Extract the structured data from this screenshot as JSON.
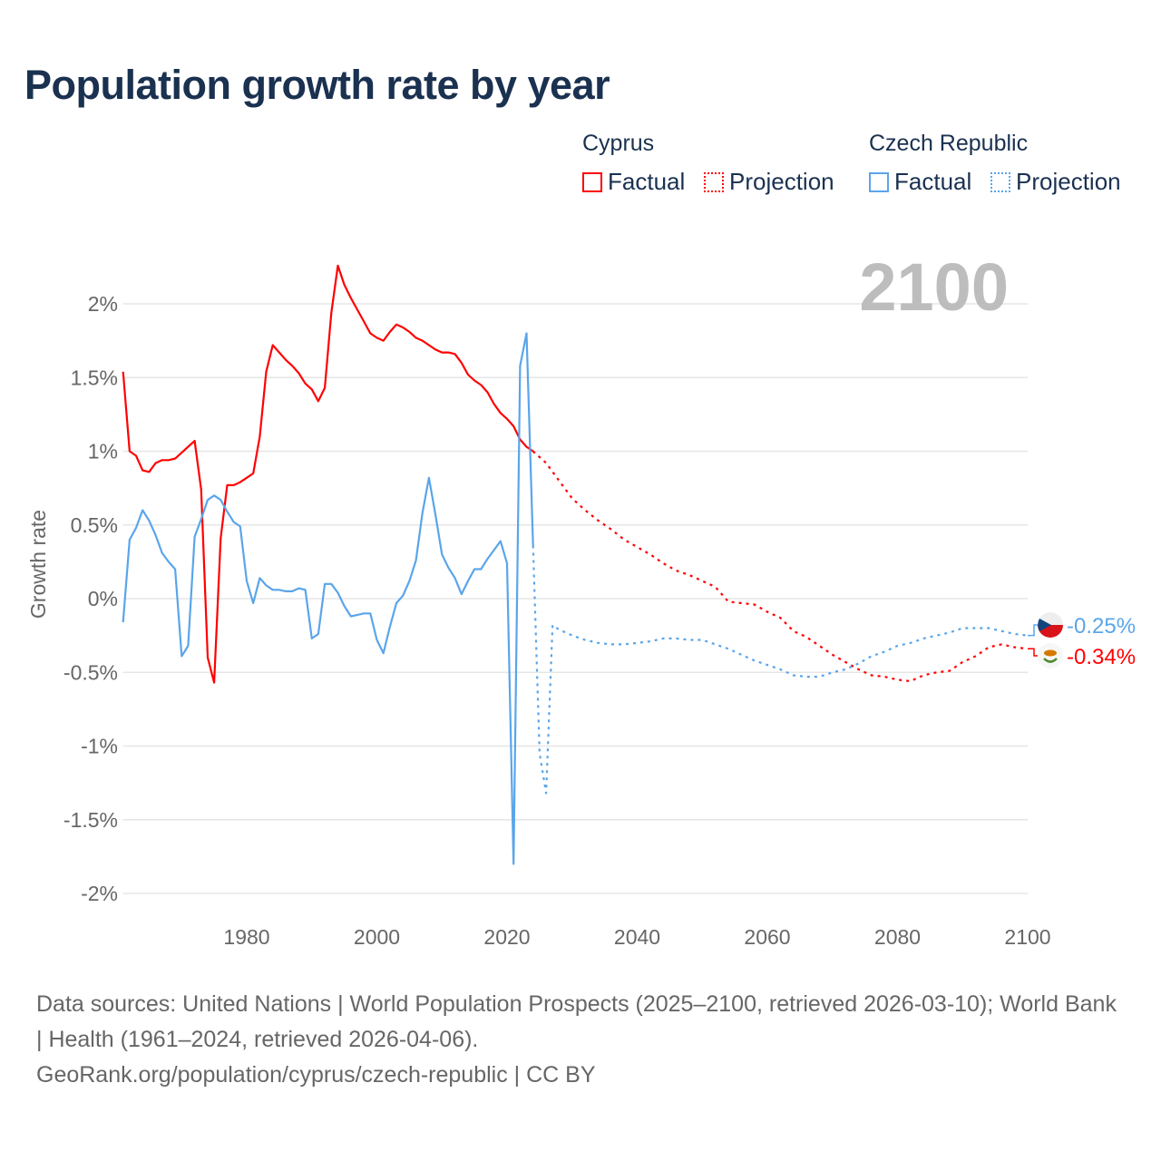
{
  "title": "Population growth rate by year",
  "legend": {
    "groups": [
      {
        "country": "Cyprus",
        "color": "#ff0000",
        "factual_label": "Factual",
        "projection_label": "Projection"
      },
      {
        "country": "Czech Republic",
        "color": "#5aa5ea",
        "factual_label": "Factual",
        "projection_label": "Projection"
      }
    ]
  },
  "year_display": "2100",
  "footer": {
    "line1": "Data sources: United Nations | World Population Prospects (2025–2100, retrieved 2026-03-10); World Bank | Health (1961–2024, retrieved 2026-04-06).",
    "line2": "GeoRank.org/population/cyprus/czech-republic | CC BY"
  },
  "chart_data": {
    "type": "line",
    "title": "Population growth rate by year",
    "xlabel": "",
    "ylabel": "Growth rate",
    "xlim": [
      1961,
      2100
    ],
    "ylim": [
      -2,
      2.3
    ],
    "x_ticks": [
      1980,
      2000,
      2020,
      2040,
      2060,
      2080,
      2100
    ],
    "y_ticks": [
      {
        "value": 2,
        "label": "2%"
      },
      {
        "value": 1.5,
        "label": "1.5%"
      },
      {
        "value": 1,
        "label": "1%"
      },
      {
        "value": 0.5,
        "label": "0.5%"
      },
      {
        "value": 0,
        "label": "0%"
      },
      {
        "value": -0.5,
        "label": "-0.5%"
      },
      {
        "value": -1,
        "label": "-1%"
      },
      {
        "value": -1.5,
        "label": "-1.5%"
      },
      {
        "value": -2,
        "label": "-2%"
      }
    ],
    "grid": true,
    "legend_position": "top-right",
    "series": [
      {
        "name": "Cyprus",
        "type": "Factual",
        "color": "#ff0000",
        "dashed": false,
        "x": [
          1961,
          1962,
          1963,
          1964,
          1965,
          1966,
          1967,
          1968,
          1969,
          1970,
          1971,
          1972,
          1973,
          1974,
          1975,
          1976,
          1977,
          1978,
          1979,
          1980,
          1981,
          1982,
          1983,
          1984,
          1985,
          1986,
          1987,
          1988,
          1989,
          1990,
          1991,
          1992,
          1993,
          1994,
          1995,
          1996,
          1997,
          1998,
          1999,
          2000,
          2001,
          2002,
          2003,
          2004,
          2005,
          2006,
          2007,
          2008,
          2009,
          2010,
          2011,
          2012,
          2013,
          2014,
          2015,
          2016,
          2017,
          2018,
          2019,
          2020,
          2021,
          2022,
          2023,
          2024
        ],
        "y": [
          1.54,
          1.0,
          0.97,
          0.87,
          0.86,
          0.92,
          0.94,
          0.94,
          0.95,
          0.99,
          1.03,
          1.07,
          0.74,
          -0.4,
          -0.57,
          0.41,
          0.77,
          0.77,
          0.79,
          0.82,
          0.85,
          1.1,
          1.54,
          1.72,
          1.67,
          1.62,
          1.58,
          1.53,
          1.46,
          1.42,
          1.34,
          1.43,
          1.94,
          2.26,
          2.13,
          2.04,
          1.96,
          1.88,
          1.8,
          1.77,
          1.75,
          1.81,
          1.86,
          1.84,
          1.81,
          1.77,
          1.75,
          1.72,
          1.69,
          1.67,
          1.67,
          1.66,
          1.6,
          1.52,
          1.48,
          1.45,
          1.4,
          1.32,
          1.26,
          1.22,
          1.17,
          1.08,
          1.03,
          1.0
        ]
      },
      {
        "name": "Cyprus",
        "type": "Projection",
        "color": "#ff0000",
        "dashed": true,
        "x": [
          2024,
          2026,
          2028,
          2030,
          2032,
          2034,
          2036,
          2038,
          2040,
          2042,
          2044,
          2046,
          2048,
          2050,
          2052,
          2054,
          2056,
          2058,
          2060,
          2062,
          2064,
          2066,
          2068,
          2070,
          2072,
          2074,
          2076,
          2078,
          2080,
          2082,
          2084,
          2086,
          2088,
          2090,
          2092,
          2094,
          2096,
          2098,
          2100
        ],
        "y": [
          1.0,
          0.92,
          0.8,
          0.68,
          0.6,
          0.53,
          0.47,
          0.4,
          0.35,
          0.3,
          0.24,
          0.19,
          0.16,
          0.12,
          0.08,
          -0.02,
          -0.03,
          -0.04,
          -0.09,
          -0.13,
          -0.22,
          -0.26,
          -0.32,
          -0.38,
          -0.43,
          -0.48,
          -0.52,
          -0.53,
          -0.55,
          -0.56,
          -0.52,
          -0.5,
          -0.49,
          -0.43,
          -0.39,
          -0.33,
          -0.31,
          -0.33,
          -0.34
        ]
      },
      {
        "name": "Czech Republic",
        "type": "Factual",
        "color": "#5aa5ea",
        "dashed": false,
        "x": [
          1961,
          1962,
          1963,
          1964,
          1965,
          1966,
          1967,
          1968,
          1969,
          1970,
          1971,
          1972,
          1973,
          1974,
          1975,
          1976,
          1977,
          1978,
          1979,
          1980,
          1981,
          1982,
          1983,
          1984,
          1985,
          1986,
          1987,
          1988,
          1989,
          1990,
          1991,
          1992,
          1993,
          1994,
          1995,
          1996,
          1997,
          1998,
          1999,
          2000,
          2001,
          2002,
          2003,
          2004,
          2005,
          2006,
          2007,
          2008,
          2009,
          2010,
          2011,
          2012,
          2013,
          2014,
          2015,
          2016,
          2017,
          2018,
          2019,
          2020,
          2021,
          2022,
          2023,
          2024
        ],
        "y": [
          -0.16,
          0.4,
          0.48,
          0.6,
          0.53,
          0.43,
          0.31,
          0.25,
          0.2,
          -0.39,
          -0.32,
          0.42,
          0.54,
          0.67,
          0.7,
          0.67,
          0.59,
          0.52,
          0.49,
          0.12,
          -0.03,
          0.14,
          0.09,
          0.06,
          0.06,
          0.05,
          0.05,
          0.07,
          0.06,
          -0.27,
          -0.24,
          0.1,
          0.1,
          0.04,
          -0.05,
          -0.12,
          -0.11,
          -0.1,
          -0.1,
          -0.28,
          -0.37,
          -0.19,
          -0.03,
          0.02,
          0.12,
          0.26,
          0.58,
          0.82,
          0.57,
          0.3,
          0.21,
          0.14,
          0.03,
          0.12,
          0.2,
          0.2,
          0.27,
          0.33,
          0.39,
          0.24,
          -1.8,
          1.58,
          1.8,
          0.36
        ]
      },
      {
        "name": "Czech Republic",
        "type": "Projection",
        "color": "#5aa5ea",
        "dashed": true,
        "x": [
          2024,
          2025,
          2026,
          2027,
          2028,
          2030,
          2032,
          2034,
          2036,
          2038,
          2040,
          2042,
          2044,
          2046,
          2048,
          2050,
          2052,
          2054,
          2056,
          2058,
          2060,
          2062,
          2064,
          2066,
          2068,
          2070,
          2072,
          2074,
          2076,
          2078,
          2080,
          2082,
          2084,
          2086,
          2088,
          2090,
          2092,
          2094,
          2096,
          2098,
          2100
        ],
        "y": [
          0.36,
          -1.05,
          -1.32,
          -0.18,
          -0.21,
          -0.25,
          -0.28,
          -0.3,
          -0.31,
          -0.31,
          -0.3,
          -0.29,
          -0.27,
          -0.27,
          -0.28,
          -0.28,
          -0.31,
          -0.34,
          -0.38,
          -0.42,
          -0.45,
          -0.48,
          -0.52,
          -0.53,
          -0.53,
          -0.5,
          -0.48,
          -0.44,
          -0.39,
          -0.36,
          -0.32,
          -0.3,
          -0.27,
          -0.25,
          -0.23,
          -0.2,
          -0.2,
          -0.2,
          -0.22,
          -0.24,
          -0.25
        ]
      }
    ],
    "end_labels": [
      {
        "country": "Czech Republic",
        "label": "-0.25%",
        "value": -0.25,
        "color": "#5aa5ea",
        "flag": "czech-flag"
      },
      {
        "country": "Cyprus",
        "label": "-0.34%",
        "value": -0.34,
        "color": "#ff0000",
        "flag": "cyprus-flag"
      }
    ]
  }
}
